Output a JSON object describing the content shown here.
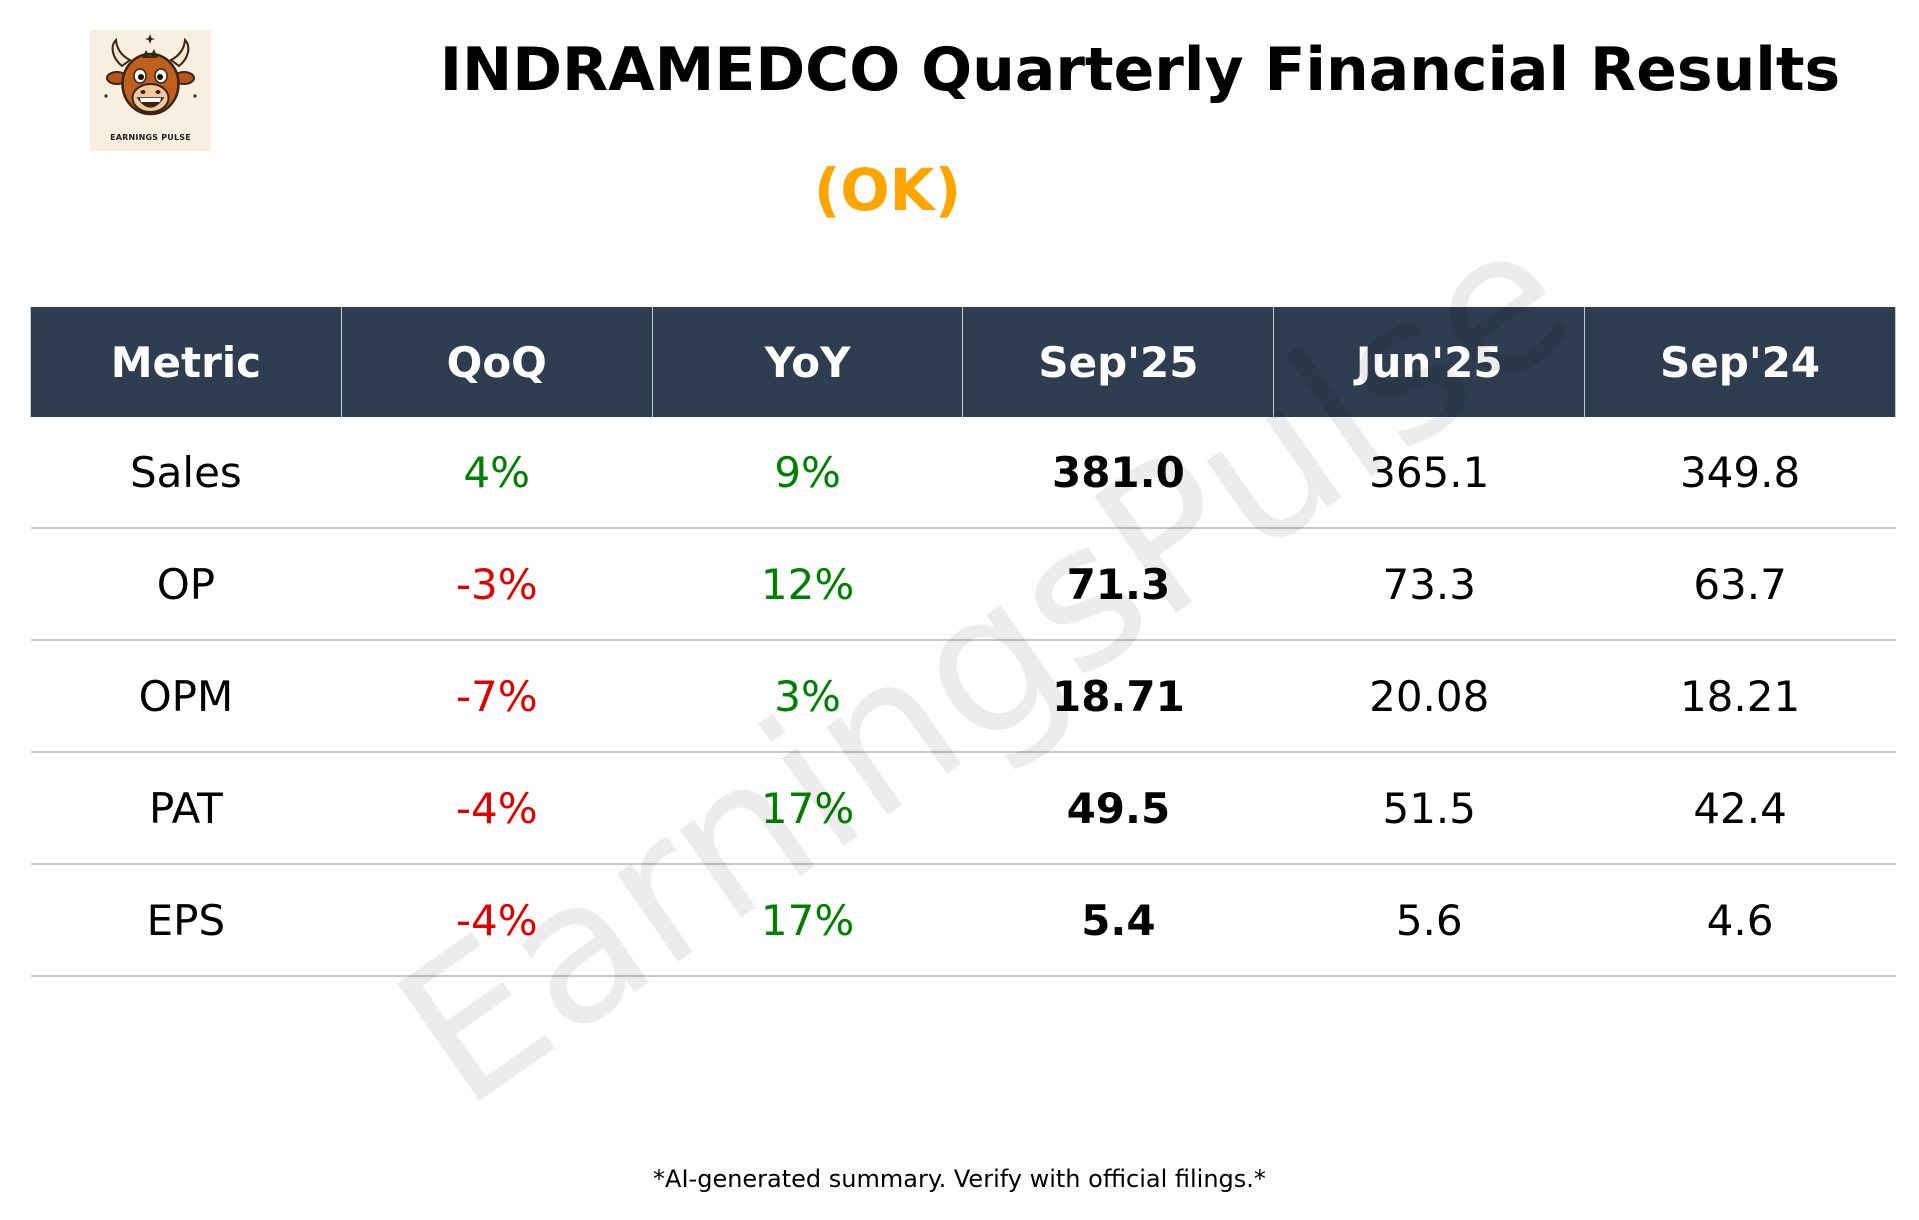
{
  "logo": {
    "text": "EARNINGS PULSE",
    "icon": "bull-mascot-icon"
  },
  "title": "INDRAMEDCO Quarterly Financial Results",
  "status": {
    "label": "(OK)",
    "color": "#ffa500"
  },
  "watermark": "EarningsPulse",
  "table": {
    "headers": [
      "Metric",
      "QoQ",
      "YoY",
      "Sep'25",
      "Jun'25",
      "Sep'24"
    ],
    "rows": [
      {
        "metric": "Sales",
        "qoq": "4%",
        "qoq_trend": "pos",
        "yoy": "9%",
        "yoy_trend": "pos",
        "current": "381.0",
        "prev_q": "365.1",
        "prev_y": "349.8"
      },
      {
        "metric": "OP",
        "qoq": "-3%",
        "qoq_trend": "neg",
        "yoy": "12%",
        "yoy_trend": "pos",
        "current": "71.3",
        "prev_q": "73.3",
        "prev_y": "63.7"
      },
      {
        "metric": "OPM",
        "qoq": "-7%",
        "qoq_trend": "neg",
        "yoy": "3%",
        "yoy_trend": "pos",
        "current": "18.71",
        "prev_q": "20.08",
        "prev_y": "18.21"
      },
      {
        "metric": "PAT",
        "qoq": "-4%",
        "qoq_trend": "neg",
        "yoy": "17%",
        "yoy_trend": "pos",
        "current": "49.5",
        "prev_q": "51.5",
        "prev_y": "42.4"
      },
      {
        "metric": "EPS",
        "qoq": "-4%",
        "qoq_trend": "neg",
        "yoy": "17%",
        "yoy_trend": "pos",
        "current": "5.4",
        "prev_q": "5.6",
        "prev_y": "4.6"
      }
    ]
  },
  "colors": {
    "header_bg": "#2e3d50",
    "positive": "#008000",
    "negative": "#e00000"
  },
  "footer": "*AI-generated summary. Verify with official filings.*"
}
